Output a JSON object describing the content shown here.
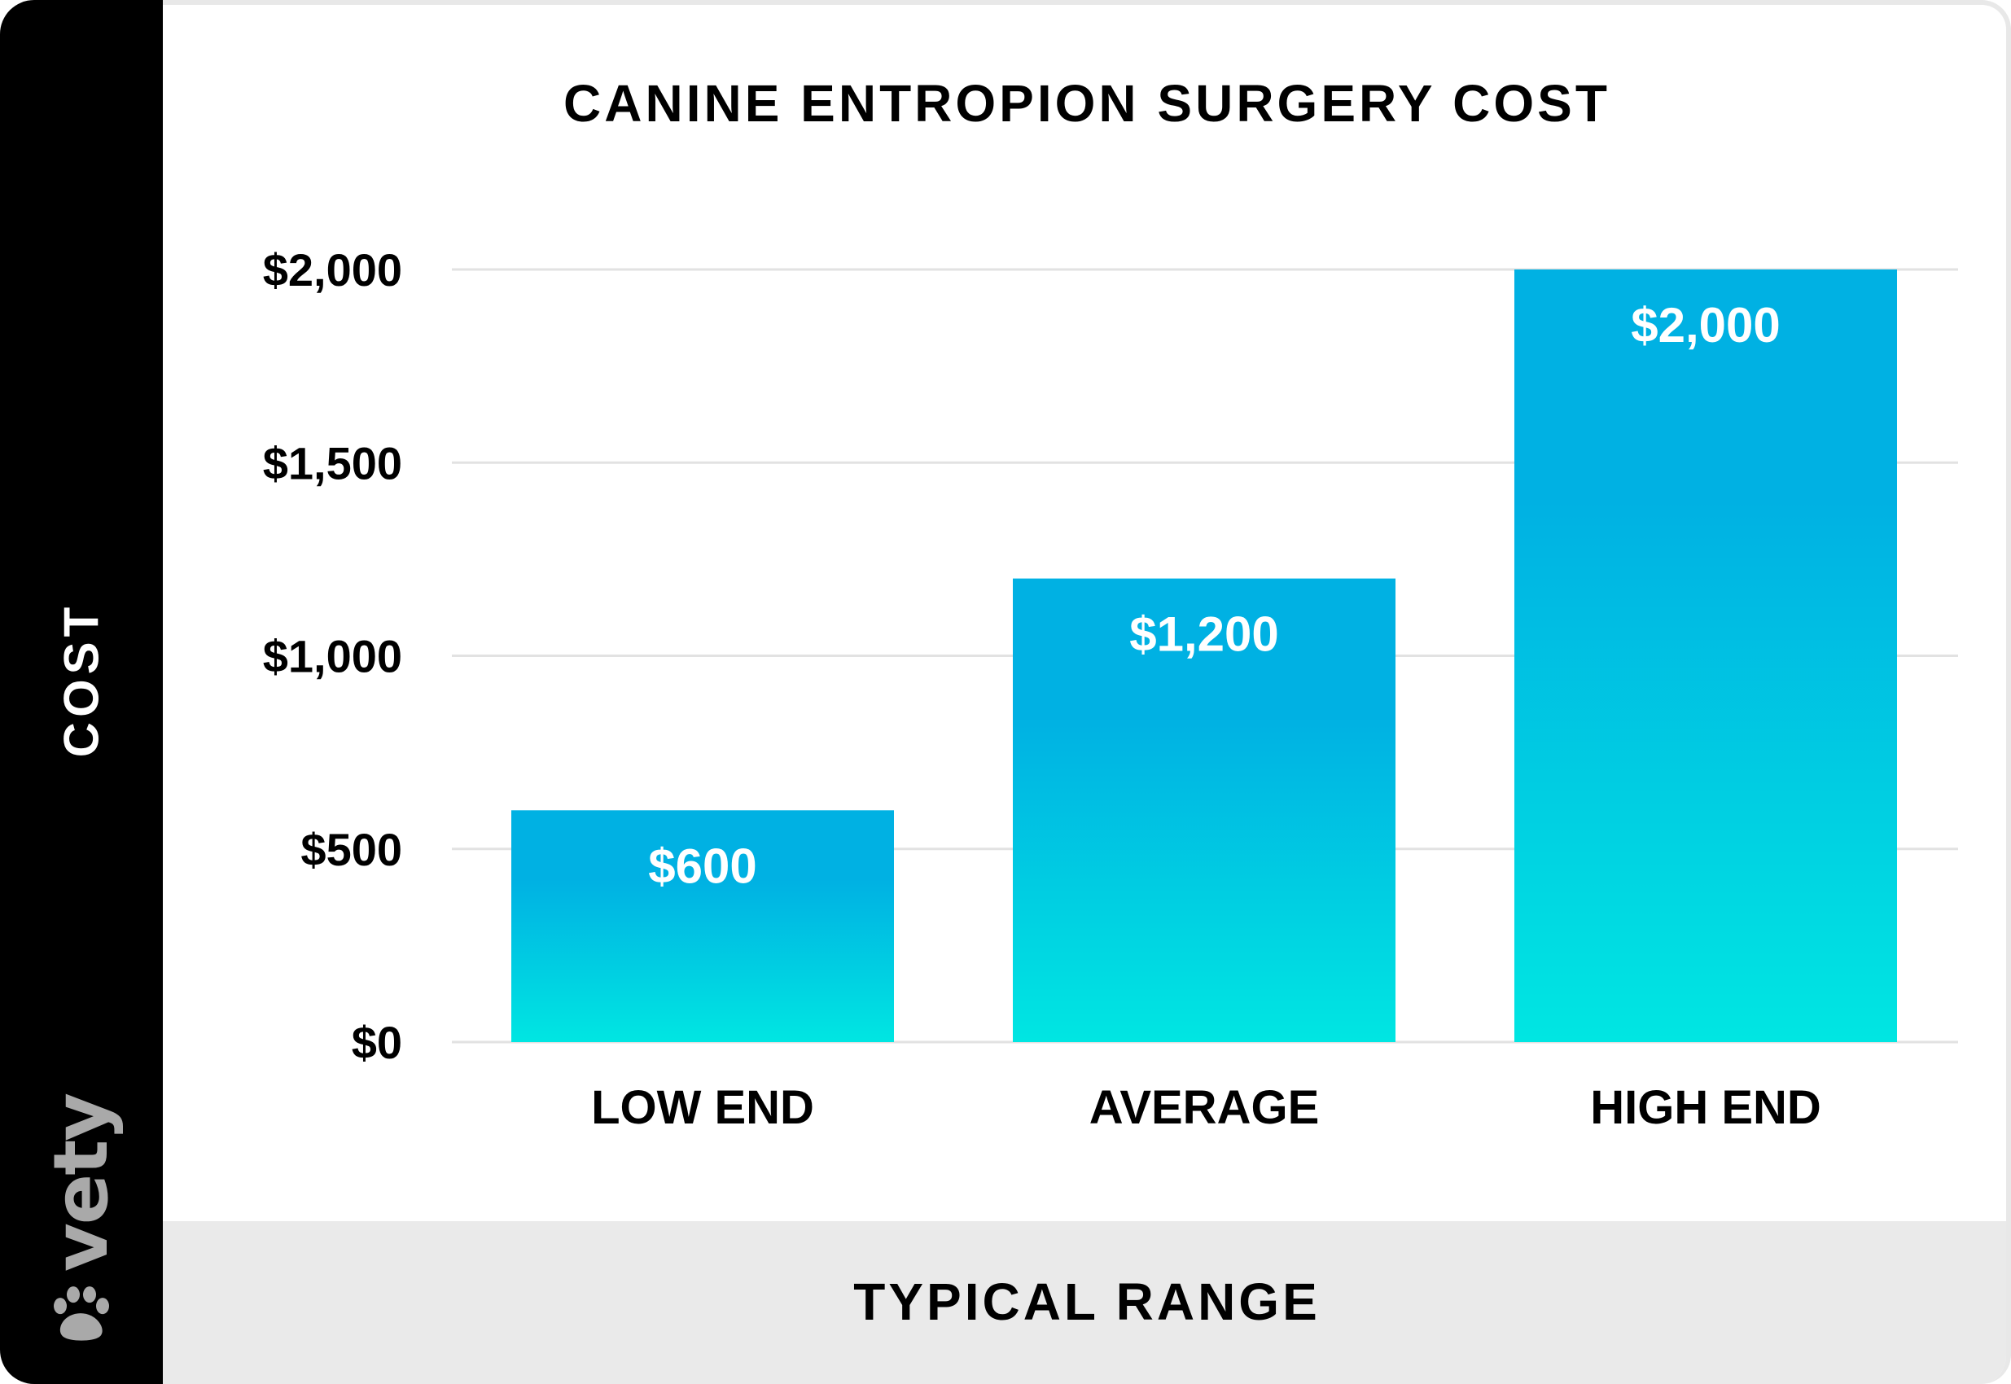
{
  "brand": {
    "name": "vety",
    "logo_icon": "paw-icon",
    "logo_color": "#a9a9a9"
  },
  "colors": {
    "bar_top": "#00b1e3",
    "bar_bottom": "#00e6e2",
    "gridline": "#e2e2e2",
    "sidebar": "#000000",
    "bottom_band": "#eaeaea"
  },
  "chart_data": {
    "type": "bar",
    "title": "CANINE ENTROPION SURGERY COST",
    "xlabel": "TYPICAL RANGE",
    "ylabel": "COST",
    "categories": [
      "LOW END",
      "AVERAGE",
      "HIGH END"
    ],
    "values": [
      600,
      1200,
      2000
    ],
    "value_labels": [
      "$600",
      "$1,200",
      "$2,000"
    ],
    "ylim": [
      0,
      2000
    ],
    "yticks": [
      0,
      500,
      1000,
      1500,
      2000
    ],
    "ytick_labels": [
      "$0",
      "$500",
      "$1,000",
      "$1,500",
      "$2,000"
    ],
    "grid": true,
    "legend": "none"
  }
}
